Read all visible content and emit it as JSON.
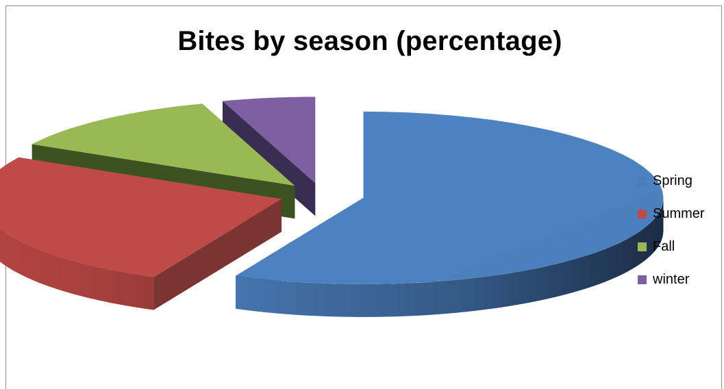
{
  "chart_data": {
    "type": "pie",
    "title": "Bites by season (percentage)",
    "categories": [
      "Spring",
      "Summer",
      "Fall",
      "winter"
    ],
    "values": [
      57,
      26,
      12,
      5
    ],
    "colors": [
      "#4a7ebb",
      "#be4b48",
      "#98b954",
      "#7d60a0"
    ],
    "legend_position": "right"
  }
}
